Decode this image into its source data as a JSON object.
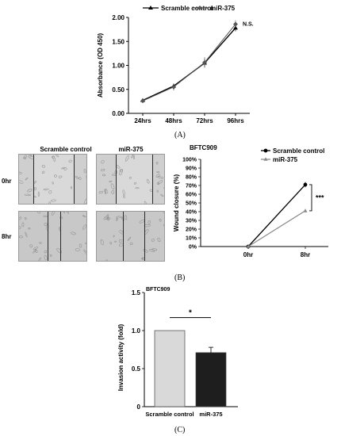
{
  "panels": [
    {
      "label": "(A)"
    },
    {
      "label": "(B)"
    },
    {
      "label": "(C)"
    }
  ],
  "microscopy": {
    "columns": [
      "Scramble control",
      "miR-375"
    ],
    "rows": [
      "0hr",
      "8hr"
    ]
  },
  "chart_data": [
    {
      "type": "line",
      "title": "",
      "xlabel": "",
      "ylabel": "Absorbance (OD 450)",
      "categories": [
        "24hrs",
        "48hrs",
        "72hrs",
        "96hrs"
      ],
      "ylim": [
        0,
        2
      ],
      "yticks": [
        "0.00",
        "0.50",
        "1.00",
        "1.50",
        "2.00"
      ],
      "legend": "top",
      "annotation": "N.S.",
      "series": [
        {
          "name": "Scramble control",
          "color": "#000000",
          "marker": "triangle",
          "values": [
            0.27,
            0.57,
            1.05,
            1.78
          ],
          "errors": [
            0.02,
            0.05,
            0.08,
            0.07
          ]
        },
        {
          "name": "miR-375",
          "color": "#555555",
          "marker": "diamond",
          "values": [
            0.26,
            0.55,
            1.06,
            1.86
          ],
          "errors": [
            0.03,
            0.07,
            0.11,
            0.08
          ]
        }
      ]
    },
    {
      "type": "line",
      "title": "BFTC909",
      "xlabel": "",
      "ylabel": "Wound closure (%)",
      "categories": [
        "0hr",
        "8hr"
      ],
      "ylim": [
        0,
        100
      ],
      "yticks": [
        "0%",
        "10%",
        "20%",
        "30%",
        "40%",
        "50%",
        "60%",
        "70%",
        "80%",
        "90%",
        "100%"
      ],
      "legend": "top-right",
      "annotation": "***",
      "series": [
        {
          "name": "Scramble control",
          "color": "#000000",
          "marker": "circle",
          "values": [
            0,
            71
          ],
          "errors": [
            0,
            3
          ]
        },
        {
          "name": "miR-375",
          "color": "#8c8c8c",
          "marker": "triangle",
          "values": [
            0,
            41
          ],
          "errors": [
            0,
            2
          ]
        }
      ]
    },
    {
      "type": "bar",
      "title": "BFTC909",
      "xlabel": "",
      "ylabel": "Invasion activity (fold)",
      "categories": [
        "Scramble control",
        "miR-375"
      ],
      "values": [
        1.0,
        0.71
      ],
      "errors": [
        0.0,
        0.07
      ],
      "colors": [
        "#d9d9d9",
        "#1e1e1e"
      ],
      "ylim": [
        0,
        1.5
      ],
      "yticks": [
        "0",
        "0.5",
        "1.0",
        "1.5"
      ],
      "annotation": "*"
    }
  ]
}
